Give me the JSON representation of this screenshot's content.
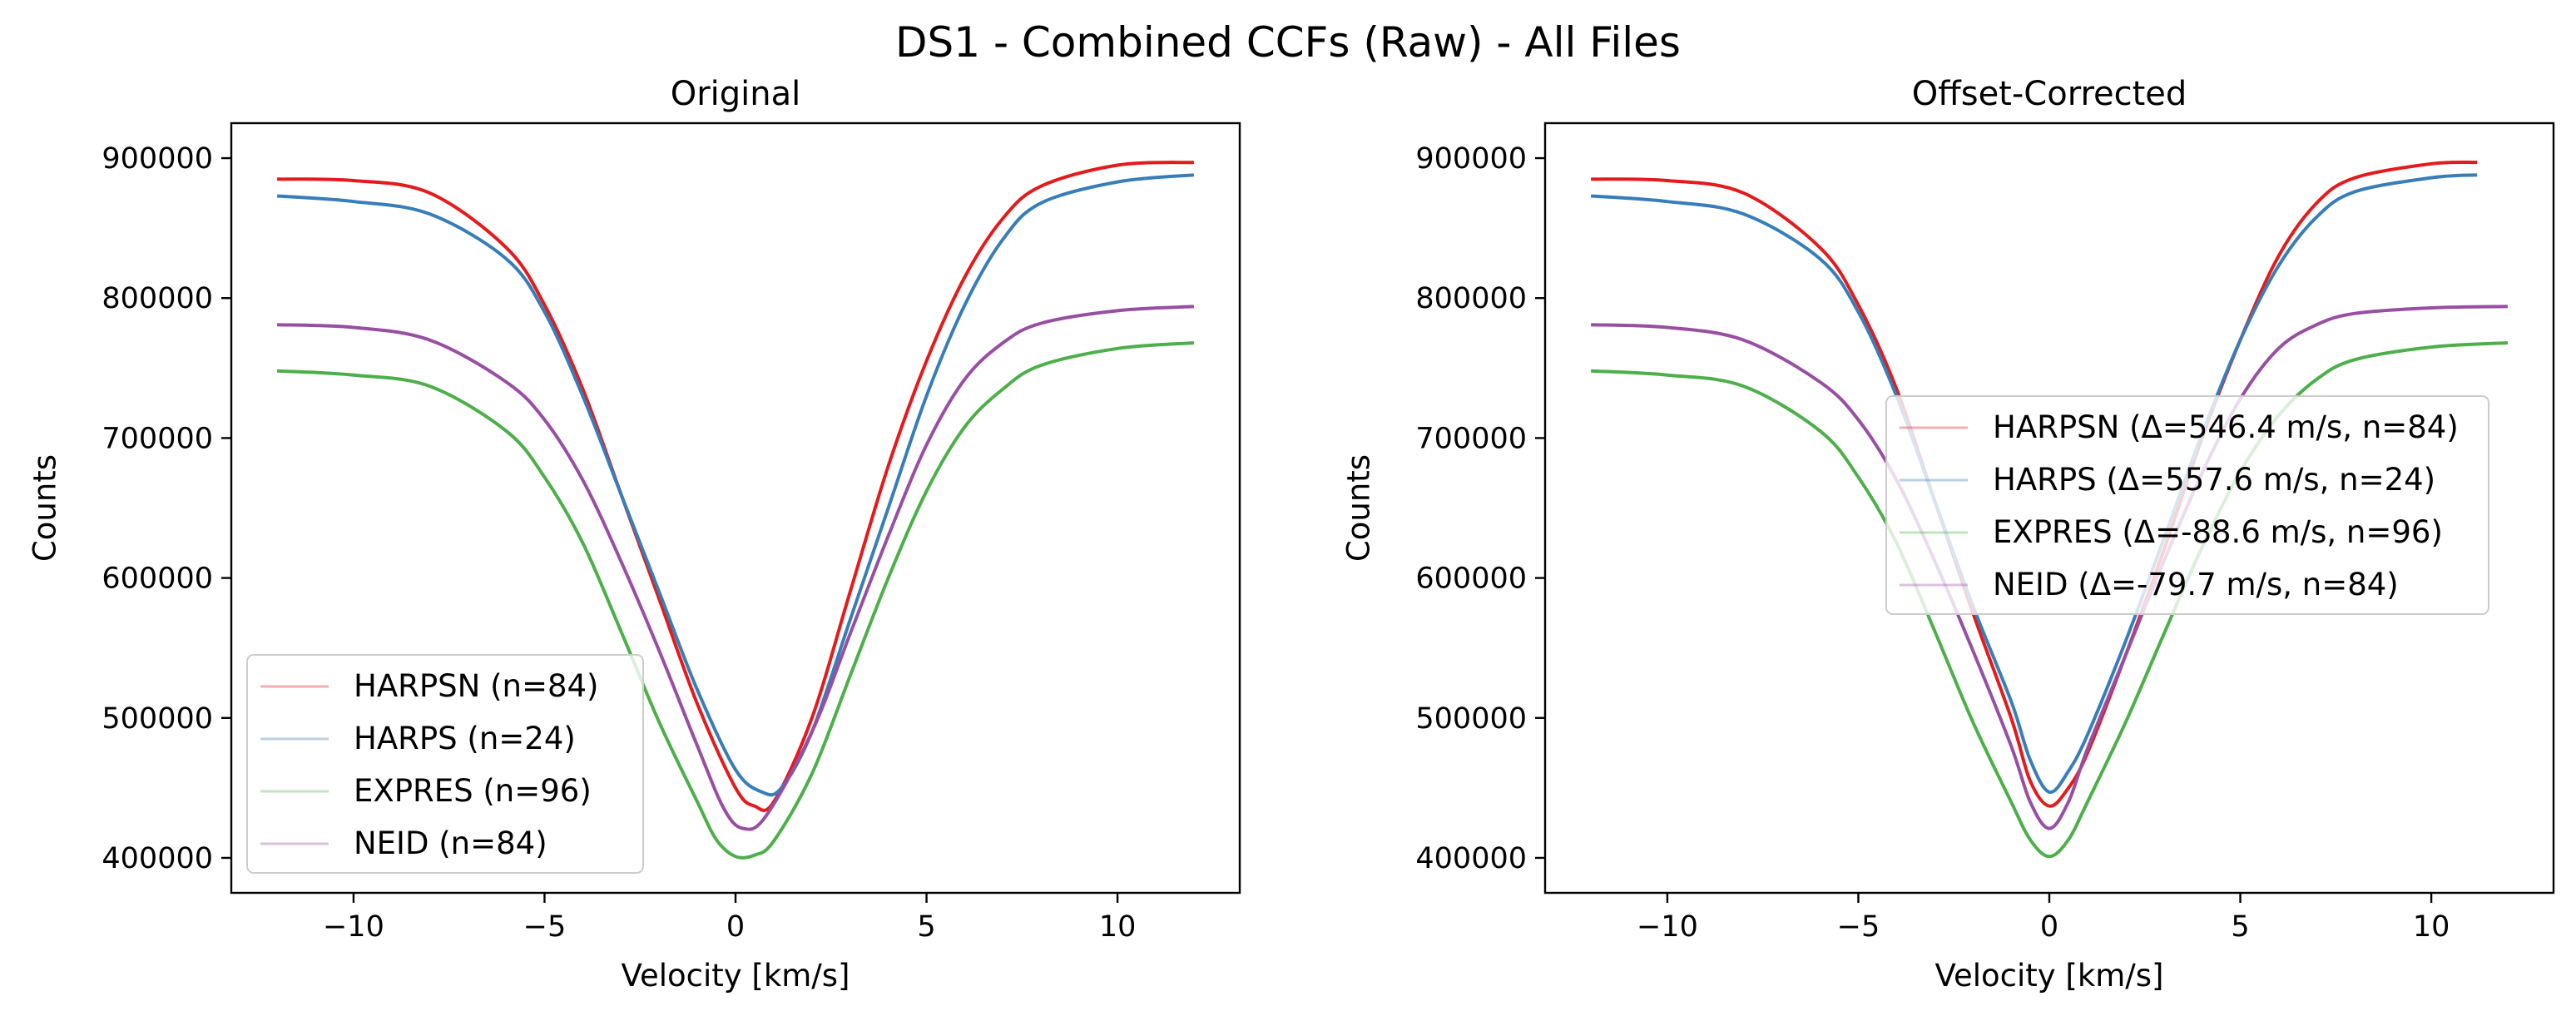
{
  "figure": {
    "suptitle": "DS1 - Combined CCFs (Raw) - All Files"
  },
  "chart_data": [
    {
      "type": "line",
      "title": "Original",
      "xlabel": "Velocity [km/s]",
      "ylabel": "Counts",
      "xlim": [
        -13.2,
        13.2
      ],
      "ylim": [
        375000,
        925000
      ],
      "xticks": [
        -10,
        -5,
        0,
        5,
        10
      ],
      "xtick_labels": [
        "−10",
        "−5",
        "0",
        "5",
        "10"
      ],
      "yticks": [
        400000,
        500000,
        600000,
        700000,
        800000,
        900000
      ],
      "ytick_labels": [
        "400000",
        "500000",
        "600000",
        "700000",
        "800000",
        "900000"
      ],
      "grid": false,
      "legend_position": "lower left",
      "series": [
        {
          "name": "HARPSN (n=84)",
          "color": "#e41a1c",
          "x": [
            -12,
            -10,
            -8,
            -6,
            -5,
            -4,
            -3,
            -2,
            -1,
            0,
            0.5,
            1,
            2,
            3,
            4,
            5,
            6,
            7,
            8,
            10,
            12
          ],
          "y": [
            885000,
            884000,
            875000,
            836000,
            795000,
            735000,
            660000,
            585000,
            510000,
            450000,
            437000,
            440000,
            500000,
            590000,
            680000,
            755000,
            815000,
            857000,
            880000,
            895000,
            897000
          ]
        },
        {
          "name": "HARPS (n=24)",
          "color": "#377eb8",
          "x": [
            -12,
            -10,
            -8,
            -6,
            -5,
            -4,
            -3,
            -2,
            -1,
            0,
            0.7,
            1.2,
            2,
            3,
            4,
            5,
            6,
            7,
            8,
            10,
            12
          ],
          "y": [
            873000,
            869000,
            860000,
            828000,
            790000,
            730000,
            660000,
            590000,
            520000,
            463000,
            447000,
            450000,
            490000,
            570000,
            650000,
            730000,
            795000,
            842000,
            868000,
            883000,
            888000
          ]
        },
        {
          "name": "EXPRES (n=96)",
          "color": "#4daf4a",
          "x": [
            -12,
            -10,
            -8,
            -6,
            -5,
            -4,
            -3,
            -2,
            -1,
            -0.5,
            0,
            0.5,
            1,
            2,
            3,
            4,
            5,
            6,
            7,
            8,
            10,
            12
          ],
          "y": [
            748000,
            745000,
            737000,
            705000,
            672000,
            625000,
            562000,
            497000,
            440000,
            413000,
            401000,
            402000,
            412000,
            460000,
            530000,
            600000,
            662000,
            708000,
            735000,
            752000,
            764000,
            768000
          ]
        },
        {
          "name": "NEID (n=84)",
          "color": "#984ea3",
          "x": [
            -12,
            -10,
            -8,
            -6,
            -5,
            -4,
            -3,
            -2,
            -1,
            -0.3,
            0.2,
            0.8,
            2,
            3,
            4,
            5,
            6,
            7,
            8,
            10,
            12
          ],
          "y": [
            781000,
            779000,
            770000,
            740000,
            713000,
            670000,
            612000,
            548000,
            480000,
            435000,
            421000,
            430000,
            490000,
            560000,
            630000,
            695000,
            742000,
            768000,
            782000,
            791000,
            794000
          ]
        }
      ]
    },
    {
      "type": "line",
      "title": "Offset-Corrected",
      "xlabel": "Velocity [km/s]",
      "ylabel": "Counts",
      "xlim": [
        -13.2,
        13.2
      ],
      "ylim": [
        375000,
        925000
      ],
      "xticks": [
        -10,
        -5,
        0,
        5,
        10
      ],
      "xtick_labels": [
        "−10",
        "−5",
        "0",
        "5",
        "10"
      ],
      "yticks": [
        400000,
        500000,
        600000,
        700000,
        800000,
        900000
      ],
      "ytick_labels": [
        "400000",
        "500000",
        "600000",
        "700000",
        "800000",
        "900000"
      ],
      "grid": false,
      "legend_position": "center right",
      "series": [
        {
          "name": "HARPSN (Δ=546.4 m/s, n=84)",
          "color": "#e41a1c",
          "x": [
            -12,
            -10,
            -8,
            -6,
            -5,
            -4,
            -3,
            -2,
            -1,
            -0.5,
            0,
            0.5,
            1,
            2,
            3,
            4,
            5,
            6,
            7,
            8,
            10,
            11.2
          ],
          "y": [
            885000,
            884000,
            875000,
            836000,
            795000,
            735000,
            655000,
            575000,
            500000,
            455000,
            437000,
            450000,
            475000,
            545000,
            620000,
            700000,
            770000,
            830000,
            868000,
            886000,
            896000,
            897000
          ]
        },
        {
          "name": "HARPS (Δ=557.6 m/s, n=24)",
          "color": "#377eb8",
          "x": [
            -12,
            -10,
            -8,
            -6,
            -5,
            -4,
            -3,
            -2,
            -1,
            -0.5,
            0,
            0.5,
            1,
            2,
            3,
            4,
            5,
            6,
            7,
            8,
            10,
            11.2
          ],
          "y": [
            873000,
            869000,
            860000,
            828000,
            790000,
            730000,
            655000,
            580000,
            512000,
            470000,
            447000,
            462000,
            488000,
            555000,
            628000,
            703000,
            770000,
            823000,
            858000,
            876000,
            886000,
            888000
          ]
        },
        {
          "name": "EXPRES (Δ=-88.6 m/s, n=96)",
          "color": "#4daf4a",
          "x": [
            -12,
            -10,
            -8,
            -6,
            -5,
            -4,
            -3,
            -2,
            -1,
            -0.5,
            0,
            0.5,
            1,
            2,
            3,
            4,
            5,
            6,
            7,
            8,
            10,
            12
          ],
          "y": [
            748000,
            745000,
            737000,
            705000,
            672000,
            625000,
            562000,
            497000,
            440000,
            413000,
            401000,
            413000,
            440000,
            497000,
            560000,
            622000,
            676000,
            716000,
            742000,
            756000,
            765000,
            768000
          ]
        },
        {
          "name": "NEID (Δ=-79.7 m/s, n=84)",
          "color": "#984ea3",
          "x": [
            -12,
            -10,
            -8,
            -6,
            -5,
            -4,
            -3,
            -2,
            -1,
            -0.5,
            0,
            0.5,
            1,
            2,
            3,
            4,
            5,
            6,
            7,
            8,
            10,
            12
          ],
          "y": [
            781000,
            779000,
            770000,
            740000,
            713000,
            670000,
            612000,
            548000,
            480000,
            440000,
            421000,
            440000,
            478000,
            545000,
            612000,
            675000,
            728000,
            764000,
            781000,
            789000,
            793000,
            794000
          ]
        }
      ]
    }
  ]
}
